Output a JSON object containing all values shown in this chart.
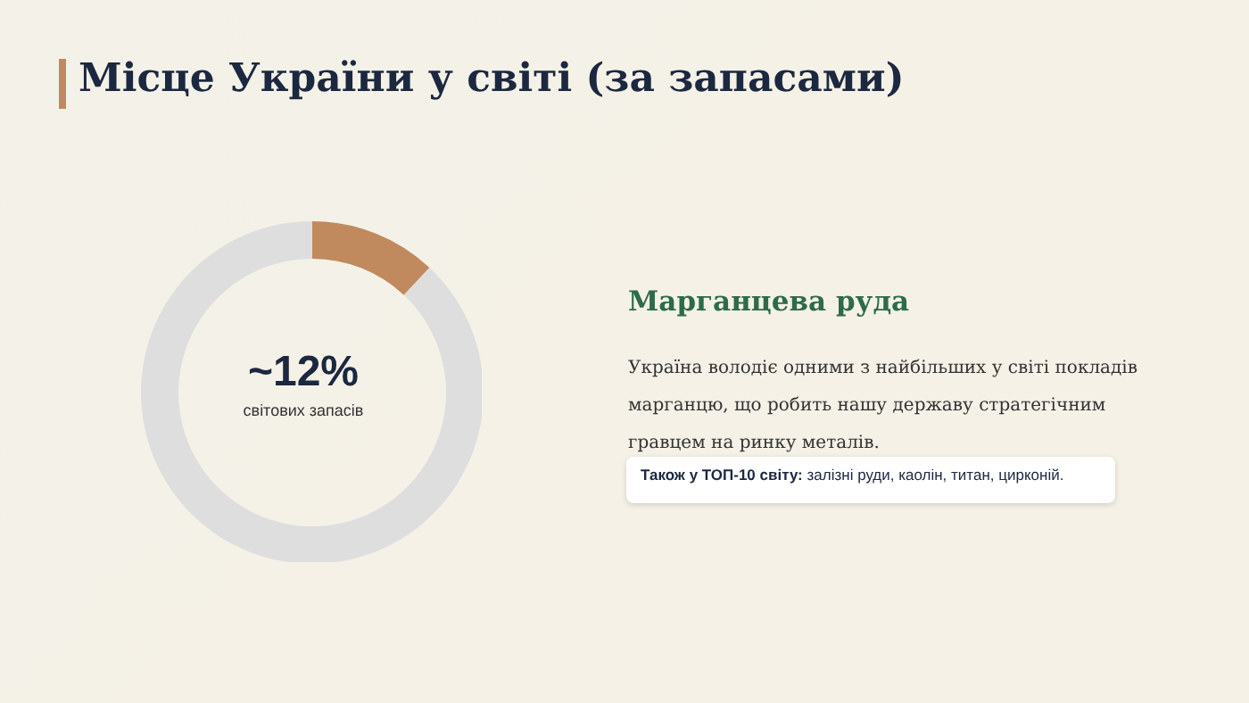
{
  "chart_data": {
    "type": "donut",
    "title": "Місце України у світі (за запасами)",
    "categories": [
      null,
      null
    ],
    "values": [
      12,
      88
    ],
    "colors": [
      "#c08a5e",
      "#dedede"
    ],
    "annotations": [
      "~12%",
      "світових запасів",
      "Марганцева руда",
      "Україна володіє одними з найбільших у світі покладів марганцю, що робить нашу державу стратегічним гравцем на ринку металів.",
      "Також у ТОП-10 світу: залізні руди, каолін, титан, цирконій."
    ]
  }
}
